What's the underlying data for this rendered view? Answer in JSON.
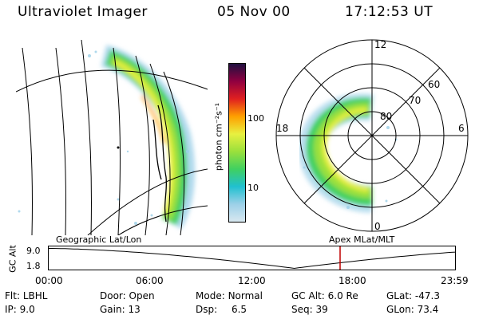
{
  "header": {
    "instrument": "Ultraviolet Imager",
    "date": "05 Nov 00",
    "time": "17:12:53 UT"
  },
  "left_panel": {
    "label": "Geographic Lat/Lon",
    "colors": {
      "grid": "#000000"
    }
  },
  "colorbar": {
    "unit_label": "photon cm⁻²s⁻¹",
    "ticks": [
      "10",
      "100"
    ],
    "stops": [
      "#d8e8f0",
      "#9cd0e8",
      "#20c0d0",
      "#40d060",
      "#9ae03c",
      "#e8f040",
      "#ffa000",
      "#e02020",
      "#900040",
      "#201040"
    ]
  },
  "polar_panel": {
    "label": "Apex MLat/MLT",
    "lat_rings": [
      "80",
      "70",
      "60"
    ],
    "mlt_labels": {
      "top": "12",
      "left": "18",
      "right": "6",
      "bottom": "0"
    }
  },
  "altitude_plot": {
    "ylabel": "GC Alt",
    "yticks": [
      "9.0",
      "1.8"
    ],
    "xticks": [
      "00:00",
      "06:00",
      "12:00",
      "18:00",
      "23:59"
    ],
    "current_time_hour": 17.2,
    "marker_color": "#c00000",
    "alt_min_hour": 14.5
  },
  "info": {
    "col1": {
      "flt_label": "Flt:",
      "flt": "LBHL",
      "ip_label": "IP:",
      "ip": "9.0"
    },
    "col2": {
      "door_label": "Door:",
      "door": "Open",
      "gain_label": "Gain:",
      "gain": "13"
    },
    "col3": {
      "mode_label": "Mode:",
      "mode": "Normal",
      "dsp_label": "Dsp:",
      "dsp": "6.5"
    },
    "col4": {
      "gcalt_label": "GC Alt:",
      "gcalt": "6.0 Re",
      "seq_label": "Seq:",
      "seq": "39"
    },
    "col5": {
      "glat_label": "GLat:",
      "glat": "-47.3",
      "glon_label": "GLon:",
      "glon": "73.4"
    }
  }
}
